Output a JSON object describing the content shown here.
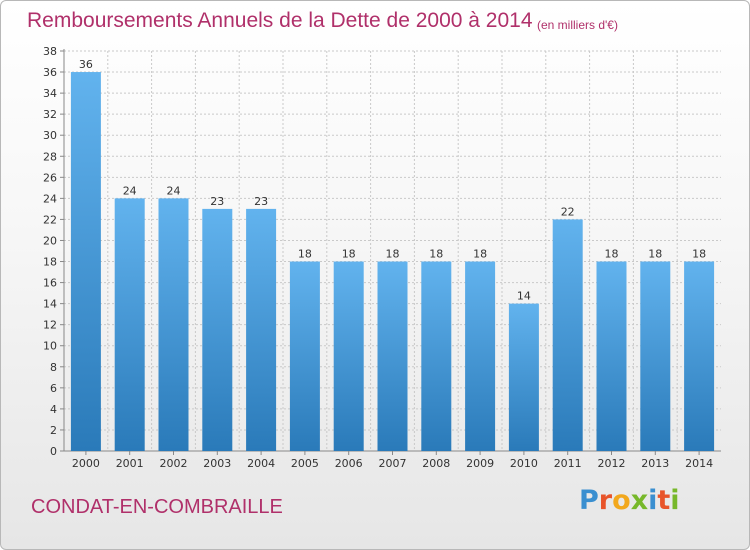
{
  "title": "Remboursements Annuels de la Dette de 2000 à 2014",
  "unit_note": "(en milliers d'€)",
  "commune": "CONDAT-EN-COMBRAILLE",
  "logo": {
    "text": "Proxiti",
    "letter_colors": [
      "#3a8fd0",
      "#e8542a",
      "#f2a81d",
      "#77b82a",
      "#3a8fd0",
      "#e8542a",
      "#77b82a"
    ]
  },
  "colors": {
    "title": "#b0306a",
    "bar_top": "#62b3ee",
    "bar_bottom": "#2a7ab9",
    "axis": "#888888",
    "grid": "#c9c9c9",
    "text": "#333333"
  },
  "chart_data": {
    "type": "bar",
    "categories": [
      "2000",
      "2001",
      "2002",
      "2003",
      "2004",
      "2005",
      "2006",
      "2007",
      "2008",
      "2009",
      "2010",
      "2011",
      "2012",
      "2013",
      "2014"
    ],
    "values": [
      36,
      24,
      24,
      23,
      23,
      18,
      18,
      18,
      18,
      18,
      14,
      22,
      18,
      18,
      18
    ],
    "ylim": [
      0,
      38
    ],
    "yticks": [
      0,
      2,
      4,
      6,
      8,
      10,
      12,
      14,
      16,
      18,
      20,
      22,
      24,
      26,
      28,
      30,
      32,
      34,
      36,
      38
    ],
    "grid": true,
    "data_labels": true,
    "xlabel": "",
    "ylabel": ""
  }
}
